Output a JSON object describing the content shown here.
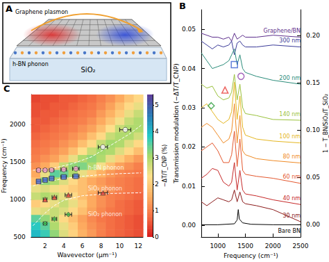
{
  "schematic": {
    "label": "A",
    "plasmon": "Graphene plasmon",
    "phonon": "h-BN phonon",
    "substrate": "SiO₂"
  },
  "chart_data": [
    {
      "panel": "B",
      "type": "line",
      "x_label": "Frequency (cm⁻¹)",
      "y_label": "Transmission modulation (−ΔT/T_CNP)",
      "y2_label": "1 − T_BN/SiO₂/T_SiO₂",
      "xlim": [
        700,
        2500
      ],
      "xticks": [
        1000,
        1500,
        2000,
        2500
      ],
      "ylim": [
        -0.003,
        0.055
      ],
      "yticks": [
        {
          "value": 0,
          "label": "0.00"
        },
        0.01,
        0.02,
        0.03,
        0.04,
        0.05
      ],
      "y2lim": [
        -0.013,
        0.227
      ],
      "y2ticks": [
        {
          "value": 0,
          "label": "0.00"
        },
        0.05,
        {
          "value": 0.1,
          "label": "0.10"
        },
        0.15,
        {
          "value": 0.2,
          "label": "0.20"
        }
      ],
      "grid": false,
      "series": [
        {
          "name": "Graphene/BN",
          "color": "#5d2e8c",
          "x": [
            700,
            800,
            900,
            1000,
            1100,
            1200,
            1250,
            1300,
            1350,
            1400,
            1450,
            1500,
            1700,
            2000,
            2500
          ],
          "values": [
            0.049,
            0.0485,
            0.048,
            0.048,
            0.0475,
            0.048,
            0.047,
            0.049,
            0.0475,
            0.048,
            0.0485,
            0.048,
            0.048,
            0.0485,
            0.048
          ]
        },
        {
          "name": "300 nm",
          "color": "#3a3a98",
          "x": [
            700,
            800,
            900,
            1000,
            1100,
            1200,
            1250,
            1300,
            1350,
            1400,
            1450,
            1500,
            1700,
            2000,
            2500
          ],
          "values": [
            0.047,
            0.046,
            0.045,
            0.046,
            0.0455,
            0.046,
            0.047,
            0.0435,
            0.0465,
            0.047,
            0.046,
            0.0455,
            0.0455,
            0.046,
            0.0455
          ]
        },
        {
          "name": "200 nm",
          "color": "#2a8c7a",
          "x": [
            700,
            800,
            900,
            1000,
            1100,
            1200,
            1250,
            1300,
            1350,
            1400,
            1450,
            1500,
            1700,
            2000,
            2500
          ],
          "values": [
            0.044,
            0.042,
            0.04,
            0.0405,
            0.041,
            0.042,
            0.0435,
            0.045,
            0.041,
            0.0435,
            0.04,
            0.039,
            0.038,
            0.037,
            0.036
          ]
        },
        {
          "name": "140 nm",
          "color": "#9ac23c",
          "x": [
            700,
            800,
            900,
            1000,
            1100,
            1200,
            1250,
            1300,
            1350,
            1400,
            1450,
            1500,
            1700,
            2000,
            2500
          ],
          "values": [
            0.036,
            0.035,
            0.0355,
            0.033,
            0.032,
            0.0325,
            0.034,
            0.0385,
            0.032,
            0.036,
            0.03,
            0.0285,
            0.028,
            0.027,
            0.0268
          ]
        },
        {
          "name": "100 nm",
          "color": "#e5b620",
          "x": [
            700,
            800,
            900,
            1000,
            1100,
            1200,
            1250,
            1300,
            1350,
            1400,
            1450,
            1500,
            1700,
            2000,
            2500
          ],
          "values": [
            0.03,
            0.031,
            0.029,
            0.027,
            0.026,
            0.027,
            0.029,
            0.0365,
            0.027,
            0.033,
            0.025,
            0.023,
            0.022,
            0.0215,
            0.021
          ]
        },
        {
          "name": "80 nm",
          "color": "#f08a24",
          "x": [
            700,
            800,
            900,
            1000,
            1100,
            1200,
            1250,
            1300,
            1350,
            1400,
            1450,
            1500,
            1700,
            2000,
            2500
          ],
          "values": [
            0.025,
            0.026,
            0.025,
            0.023,
            0.021,
            0.022,
            0.024,
            0.031,
            0.021,
            0.028,
            0.019,
            0.018,
            0.017,
            0.0165,
            0.0159
          ]
        },
        {
          "name": "60 nm",
          "color": "#e4572e",
          "x": [
            700,
            800,
            900,
            1000,
            1100,
            1200,
            1250,
            1300,
            1350,
            1400,
            1450,
            1500,
            1700,
            2000,
            2500
          ],
          "values": [
            0.019,
            0.02,
            0.021,
            0.019,
            0.016,
            0.016,
            0.018,
            0.024,
            0.015,
            0.022,
            0.014,
            0.013,
            0.0125,
            0.012,
            0.0107
          ]
        },
        {
          "name": "40 nm",
          "color": "#c62828",
          "x": [
            700,
            800,
            900,
            1000,
            1100,
            1200,
            1250,
            1300,
            1350,
            1400,
            1450,
            1500,
            1700,
            2000,
            2500
          ],
          "values": [
            0.012,
            0.013,
            0.0145,
            0.014,
            0.011,
            0.01,
            0.011,
            0.016,
            0.009,
            0.014,
            0.009,
            0.008,
            0.0075,
            0.0065,
            0.0053
          ]
        },
        {
          "name": "30 nm",
          "color": "#8b1a1a",
          "x": [
            700,
            800,
            900,
            1000,
            1100,
            1200,
            1250,
            1300,
            1350,
            1400,
            1450,
            1500,
            1700,
            2000,
            2500
          ],
          "values": [
            0.006,
            0.005,
            0.006,
            0.007,
            0.0065,
            0.006,
            0.0065,
            0.009,
            0.006,
            0.0085,
            0.006,
            0.0055,
            0.005,
            0.004,
            0.0009
          ]
        },
        {
          "name": "Bare BN",
          "color": "#000000",
          "axis": "y2",
          "x": [
            700,
            1000,
            1300,
            1350,
            1370,
            1390,
            1450,
            1600,
            2000,
            2500
          ],
          "values": [
            0,
            0,
            0.001,
            0.005,
            0.016,
            0.006,
            0.002,
            0.0005,
            0,
            0
          ]
        },
        {
          "type": "scatter",
          "marker": "diamond",
          "color": "#2e9e3e",
          "x": [
            880
          ],
          "values": [
            0.0305
          ]
        },
        {
          "type": "scatter",
          "marker": "triangle",
          "color": "#e8413c",
          "x": [
            1130
          ],
          "values": [
            0.0345
          ]
        },
        {
          "type": "scatter",
          "marker": "square",
          "color": "#3a5fd0",
          "x": [
            1300
          ],
          "values": [
            0.041
          ]
        },
        {
          "type": "scatter",
          "marker": "circle",
          "color": "#8e44ad",
          "x": [
            1420
          ],
          "values": [
            0.038
          ]
        }
      ]
    },
    {
      "panel": "C",
      "type": "heatmap",
      "x_label": "Wavevector (μm⁻¹)",
      "y_label": "Frequency (cm⁻¹)",
      "xlim": [
        0.5,
        12.5
      ],
      "xticks": [
        2,
        4,
        6,
        8,
        10,
        12
      ],
      "ylim": [
        500,
        2400
      ],
      "yticks": [
        500,
        1000,
        1500,
        2000
      ],
      "grid": false,
      "x": [
        1,
        2,
        3,
        4,
        5,
        6,
        7,
        8,
        9,
        10,
        11,
        12
      ],
      "y": [
        550,
        650,
        750,
        850,
        950,
        1050,
        1150,
        1250,
        1350,
        1450,
        1550,
        1650,
        1750,
        1850,
        1950,
        2050,
        2150,
        2250,
        2350
      ],
      "z": [
        [
          4.0,
          3.7,
          3.2,
          2.6,
          2.1,
          1.6,
          1.3,
          1.0,
          0.8,
          0.7,
          0.6,
          0.5
        ],
        [
          3.8,
          3.5,
          3.0,
          2.5,
          2.0,
          1.5,
          1.2,
          1.0,
          0.8,
          0.7,
          0.6,
          0.5
        ],
        [
          3.5,
          3.2,
          2.8,
          2.2,
          1.8,
          1.4,
          1.1,
          0.9,
          0.8,
          0.7,
          0.6,
          0.5
        ],
        [
          2.5,
          2.6,
          2.8,
          2.6,
          2.2,
          1.8,
          1.4,
          1.1,
          0.9,
          0.8,
          0.7,
          0.6
        ],
        [
          2.0,
          2.2,
          2.5,
          2.8,
          2.5,
          2.0,
          1.5,
          1.2,
          1.0,
          0.8,
          0.7,
          0.6
        ],
        [
          2.8,
          3.0,
          2.8,
          2.5,
          2.2,
          1.8,
          1.5,
          1.2,
          1.0,
          0.9,
          0.8,
          0.7
        ],
        [
          2.5,
          2.6,
          2.4,
          2.2,
          2.0,
          1.8,
          1.6,
          1.4,
          1.2,
          1.0,
          0.9,
          0.8
        ],
        [
          1.8,
          3.2,
          3.0,
          2.6,
          2.2,
          1.8,
          1.5,
          1.3,
          1.1,
          1.0,
          0.9,
          0.8
        ],
        [
          1.5,
          2.5,
          3.5,
          3.4,
          3.0,
          2.5,
          2.0,
          1.6,
          1.3,
          1.1,
          1.0,
          0.9
        ],
        [
          1.2,
          1.5,
          2.0,
          2.8,
          3.2,
          3.3,
          3.0,
          2.4,
          1.8,
          1.4,
          1.2,
          1.0
        ],
        [
          1.0,
          1.2,
          1.4,
          1.8,
          2.5,
          3.0,
          3.2,
          3.0,
          2.5,
          2.0,
          1.6,
          1.3
        ],
        [
          0.9,
          1.0,
          1.2,
          1.4,
          1.8,
          2.3,
          2.8,
          3.1,
          3.0,
          2.6,
          2.2,
          1.8
        ],
        [
          0.8,
          0.9,
          1.0,
          1.2,
          1.4,
          1.8,
          2.2,
          2.8,
          3.1,
          3.0,
          2.6,
          2.2
        ],
        [
          0.7,
          0.8,
          0.9,
          1.0,
          1.2,
          1.4,
          1.8,
          2.2,
          2.8,
          3.0,
          3.0,
          2.7
        ],
        [
          0.6,
          0.7,
          0.8,
          0.9,
          1.0,
          1.2,
          1.4,
          1.8,
          2.3,
          2.8,
          3.0,
          3.0
        ],
        [
          0.6,
          0.6,
          0.7,
          0.8,
          0.9,
          1.0,
          1.2,
          1.5,
          1.9,
          2.4,
          2.8,
          3.0
        ],
        [
          0.5,
          0.6,
          0.6,
          0.7,
          0.8,
          0.9,
          1.0,
          1.3,
          1.6,
          2.0,
          2.5,
          2.8
        ],
        [
          0.5,
          0.5,
          0.6,
          0.6,
          0.7,
          0.8,
          0.9,
          1.1,
          1.4,
          1.8,
          2.2,
          2.5
        ],
        [
          0.4,
          0.5,
          0.5,
          0.6,
          0.6,
          0.7,
          0.8,
          1.0,
          1.2,
          1.5,
          1.9,
          2.2
        ]
      ],
      "colorbar": {
        "label": "−ΔT/T_CNP (%)",
        "range": [
          0,
          5.4
        ],
        "ticks": [
          0,
          1,
          2,
          3,
          4,
          5
        ]
      },
      "series": [
        {
          "type": "line",
          "line_style": "dashed",
          "color": "#ffffff",
          "x": [
            0.7,
            3,
            5,
            7,
            9,
            11,
            12.3
          ],
          "values": [
            1390,
            1420,
            1480,
            1570,
            1720,
            1870,
            1990
          ]
        },
        {
          "type": "line",
          "line_style": "dashed",
          "color": "#ffffff",
          "x": [
            0.7,
            2,
            4,
            6,
            8,
            10,
            12.3
          ],
          "values": [
            1180,
            1230,
            1280,
            1310,
            1330,
            1345,
            1355
          ]
        },
        {
          "type": "line",
          "line_style": "dashed",
          "color": "#ffffff",
          "x": [
            0.7,
            2,
            3,
            4,
            6,
            9,
            12.3
          ],
          "values": [
            650,
            820,
            920,
            990,
            1050,
            1080,
            1090
          ]
        },
        {
          "type": "scatter",
          "marker": "circle",
          "color": "#f4a0d0",
          "x": [
            1.3,
            2,
            2.7,
            4,
            5.3
          ],
          "values": [
            1390,
            1390,
            1392,
            1400,
            1410
          ],
          "x_err": [
            0.2,
            0.2,
            0.25,
            0.3,
            0.35
          ]
        },
        {
          "type": "scatter",
          "marker": "square",
          "color": "#4a6fd8",
          "x": [
            1.3,
            2,
            2.7,
            4,
            5.3
          ],
          "values": [
            1240,
            1260,
            1280,
            1300,
            1310
          ],
          "x_err": [
            0.2,
            0.2,
            0.25,
            0.3,
            0.35
          ]
        },
        {
          "type": "scatter",
          "marker": "circle",
          "color": "#ffffff",
          "x": [
            8.2,
            10.6
          ],
          "values": [
            1700,
            1930
          ],
          "x_err": [
            0.5,
            0.6
          ]
        },
        {
          "type": "scatter",
          "marker": "diamond",
          "color": "#3cb44b",
          "x": [
            2,
            3,
            4.5
          ],
          "values": [
            680,
            740,
            800
          ],
          "x_err": [
            0.2,
            0.25,
            0.35
          ]
        },
        {
          "type": "scatter",
          "marker": "triangle",
          "color": "#e8413c",
          "x": [
            2,
            3,
            4.5,
            8.2
          ],
          "values": [
            1000,
            1030,
            1060,
            1090
          ],
          "x_err": [
            0.2,
            0.25,
            0.35,
            0.5
          ]
        }
      ],
      "annotations": [
        {
          "text": "h-BN phonon",
          "x": 6.6,
          "y": 1420
        },
        {
          "text": "SiO₂ phonon",
          "x": 6.6,
          "y": 1140
        },
        {
          "text": "SiO₂ phonon",
          "x": 6.6,
          "y": 800
        }
      ]
    }
  ]
}
